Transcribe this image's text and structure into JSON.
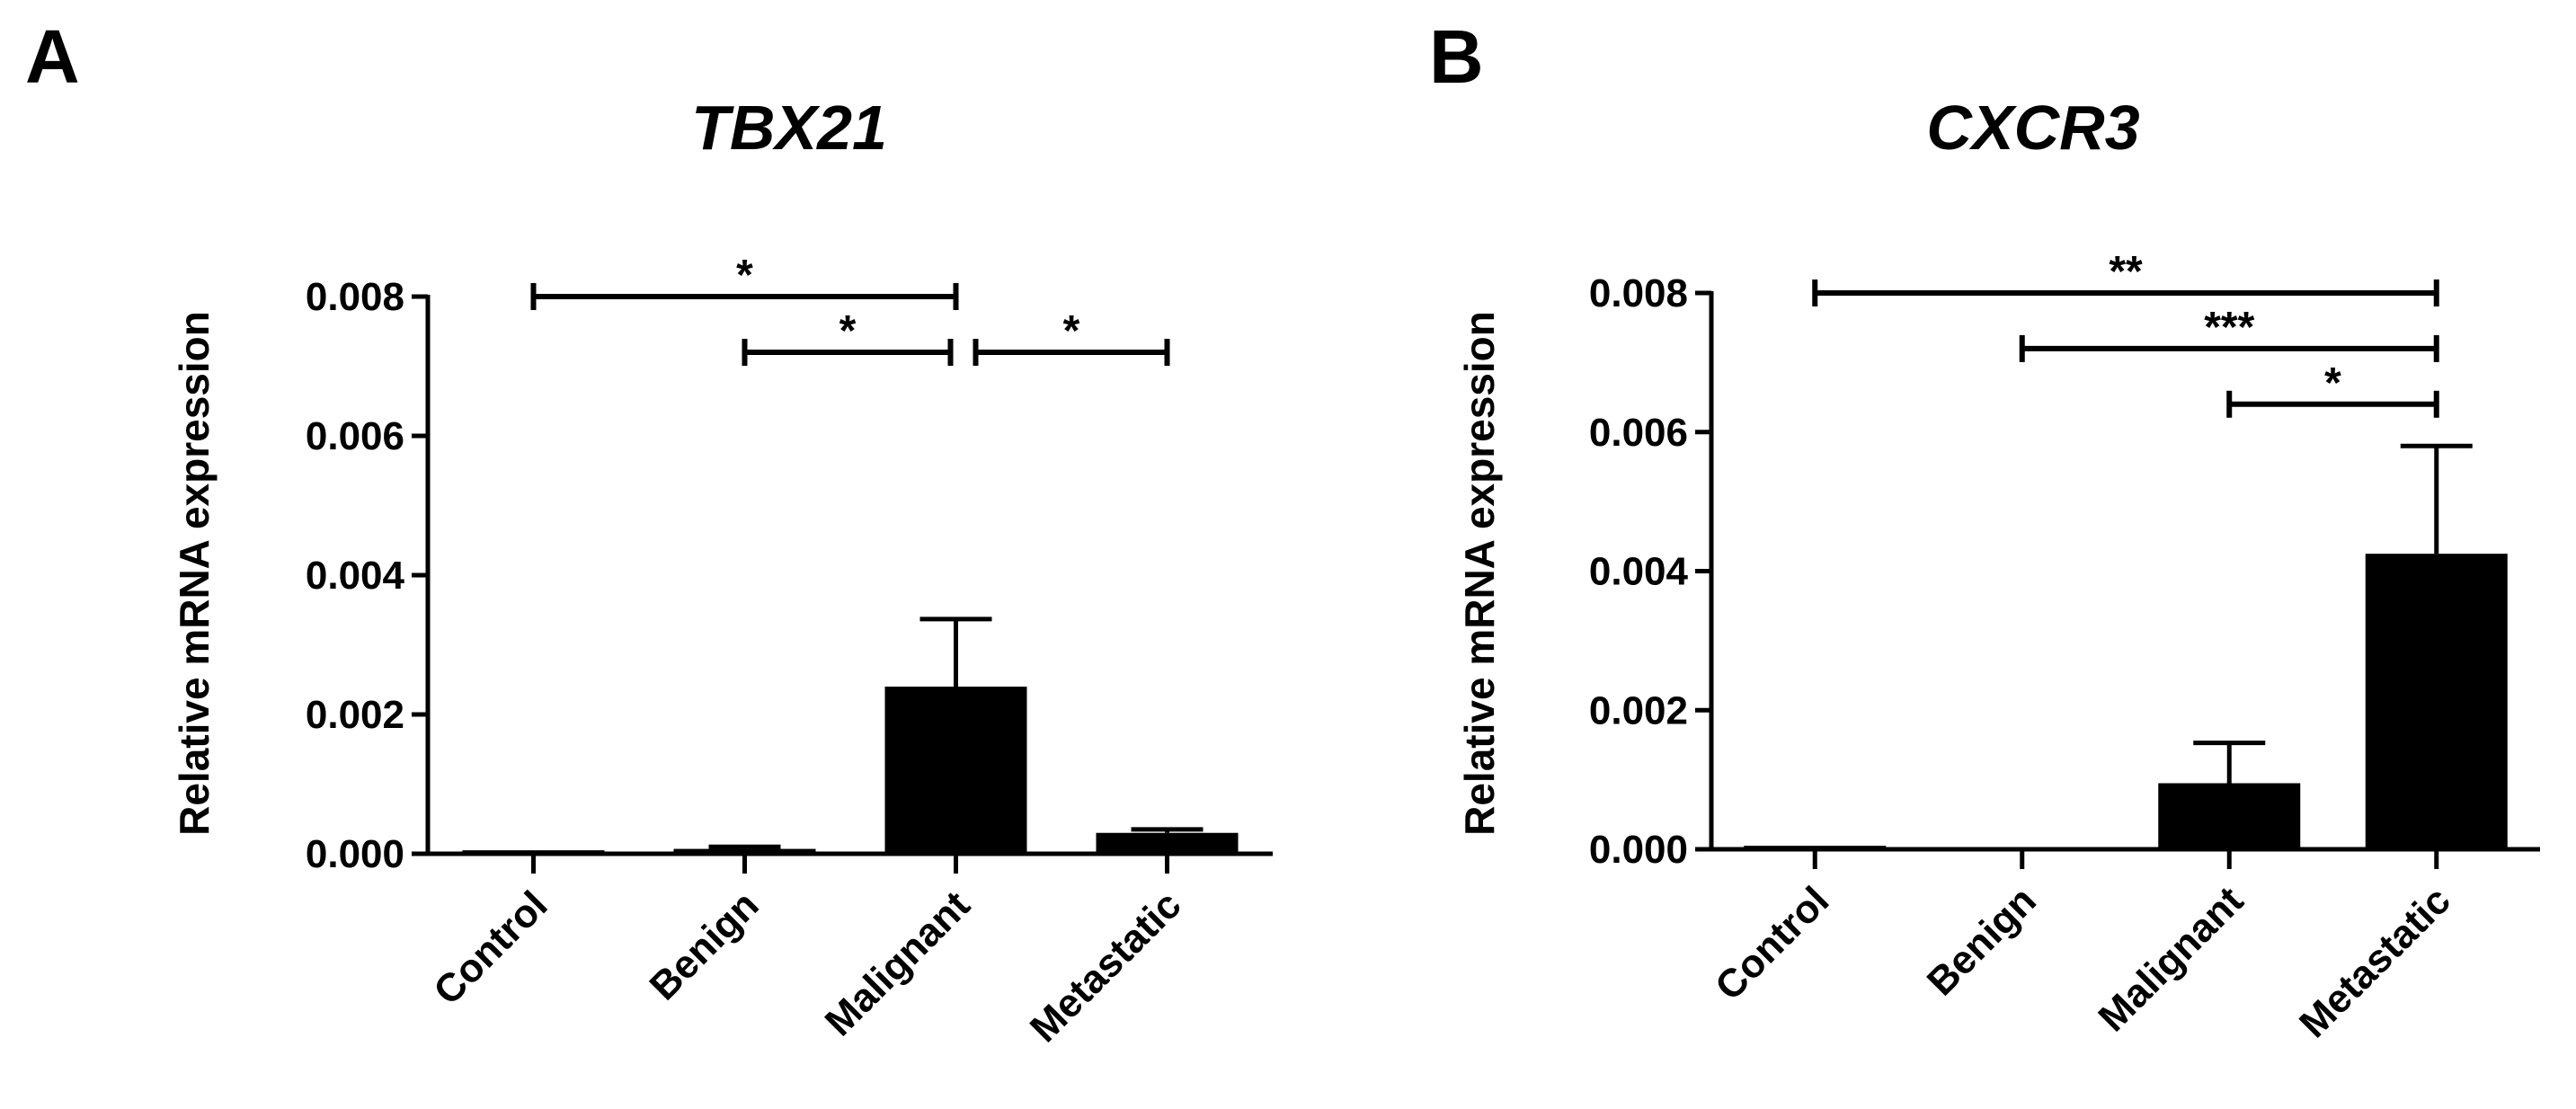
{
  "chart_data": [
    {
      "panel": "A",
      "type": "bar",
      "title": "TBX21",
      "ylabel": "Relative mRNA expression",
      "xlabel": "",
      "ylim": [
        0,
        0.008
      ],
      "yticks": [
        "0.000",
        "0.002",
        "0.004",
        "0.006",
        "0.008"
      ],
      "categories": [
        "Control",
        "Benign",
        "Malignant",
        "Metastatic"
      ],
      "values": [
        5e-05,
        7e-05,
        0.0024,
        0.0003
      ],
      "errors": [
        0.0,
        3e-05,
        0.00097,
        5e-05
      ],
      "significance": [
        {
          "from": 0,
          "to": 2,
          "y": 0.008,
          "label": "*"
        },
        {
          "from": 1,
          "to": 2,
          "y": 0.0072,
          "label": "*"
        },
        {
          "from": 2,
          "to": 3,
          "y": 0.0072,
          "label": "*"
        }
      ],
      "grid": false,
      "legend": "none"
    },
    {
      "panel": "B",
      "type": "bar",
      "title": "CXCR3",
      "ylabel": "Relative mRNA expression",
      "xlabel": "",
      "ylim": [
        0,
        0.008
      ],
      "yticks": [
        "0.000",
        "0.002",
        "0.004",
        "0.006",
        "0.008"
      ],
      "categories": [
        "Control",
        "Benign",
        "Malignant",
        "Metastatic"
      ],
      "values": [
        5e-05,
        0.0,
        0.00095,
        0.00425
      ],
      "errors": [
        0.0,
        0.0,
        0.00058,
        0.00155
      ],
      "significance": [
        {
          "from": 0,
          "to": 3,
          "y": 0.008,
          "label": "**"
        },
        {
          "from": 1,
          "to": 3,
          "y": 0.0072,
          "label": "***"
        },
        {
          "from": 2,
          "to": 3,
          "y": 0.0064,
          "label": "*"
        }
      ],
      "grid": false,
      "legend": "none"
    }
  ],
  "style": {
    "bar_color": "#000000",
    "axis_color": "#000000"
  }
}
